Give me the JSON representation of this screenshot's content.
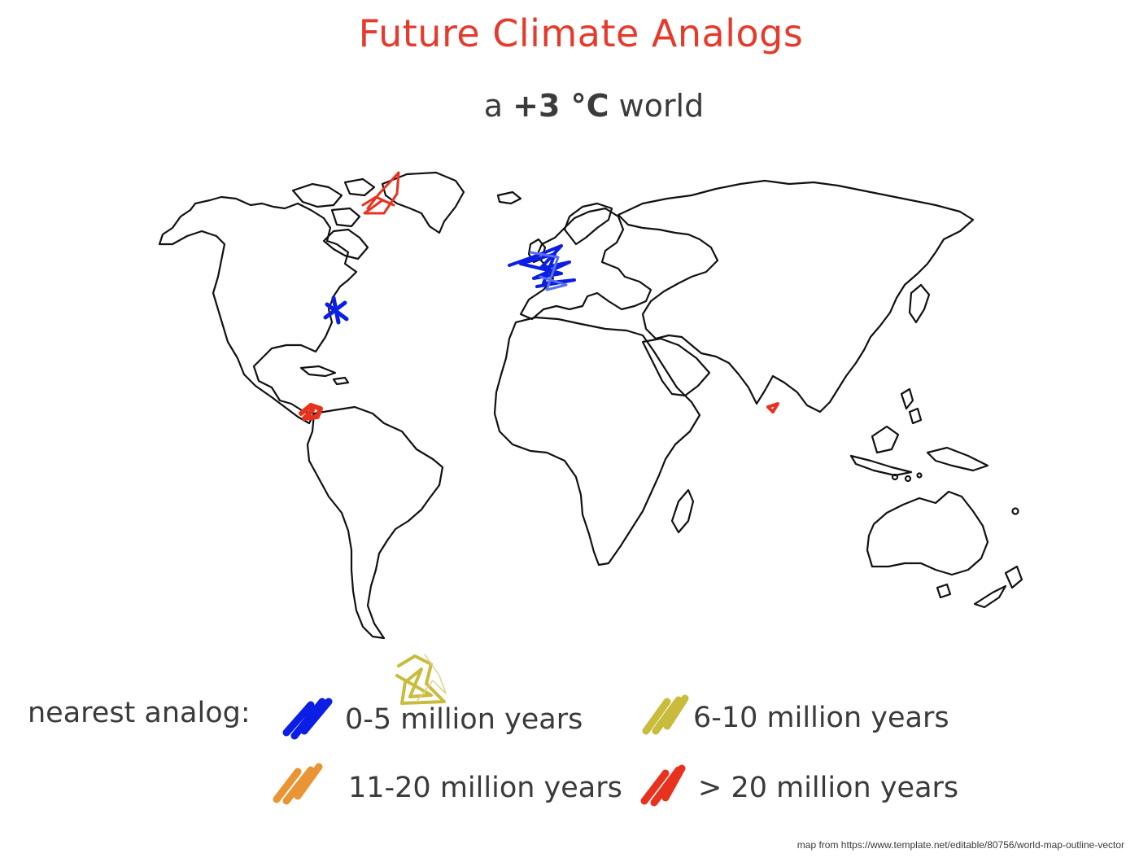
{
  "title": "Future Climate Analogs",
  "subtitle": {
    "prefix": "a ",
    "value": "+3 °C",
    "suffix": " world"
  },
  "legend": {
    "heading": "nearest analog:",
    "items": [
      {
        "label": "0-5 million years",
        "color": "#0a1ee6"
      },
      {
        "label": "6-10 million years",
        "color": "#c9bc3c"
      },
      {
        "label": "11-20 million years",
        "color": "#ea9535"
      },
      {
        "label": "> 20 million years",
        "color": "#e8321e"
      }
    ]
  },
  "credit": "map from https://www.template.net/editable/80756/world-map-outline-vector"
}
